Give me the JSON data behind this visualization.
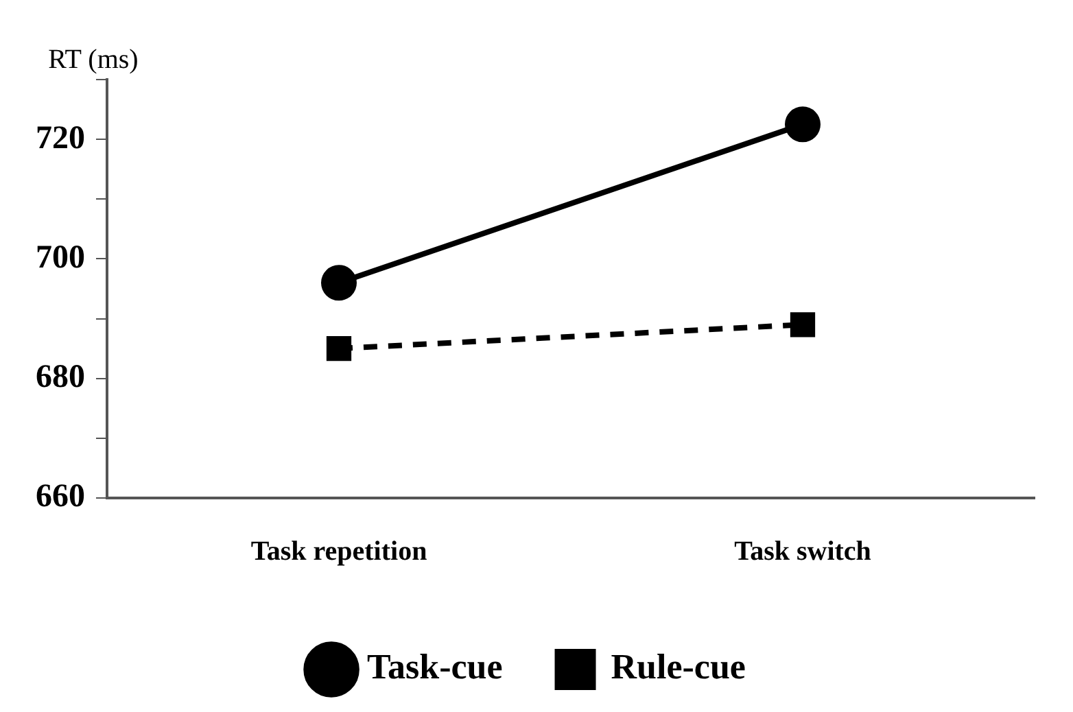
{
  "chart_data": {
    "type": "line",
    "ylabel": "RT (ms)",
    "categories": [
      "Task repetition",
      "Task switch"
    ],
    "series": [
      {
        "name": "Task-cue",
        "color": "#000000",
        "values": [
          696,
          722.5
        ],
        "marker": "circle",
        "line_style": "solid"
      },
      {
        "name": "Rule-cue",
        "color": "#000000",
        "values": [
          685,
          689
        ],
        "marker": "square",
        "line_style": "dashed"
      }
    ],
    "ylim": [
      660,
      730
    ],
    "yticks": [
      660,
      {
        "value": 670,
        "label": null
      },
      680,
      {
        "value": 690,
        "label": null
      },
      700,
      {
        "value": 710,
        "label": null
      },
      720,
      {
        "value": 730,
        "label": null
      }
    ],
    "grid": false,
    "legend": "bottom"
  }
}
